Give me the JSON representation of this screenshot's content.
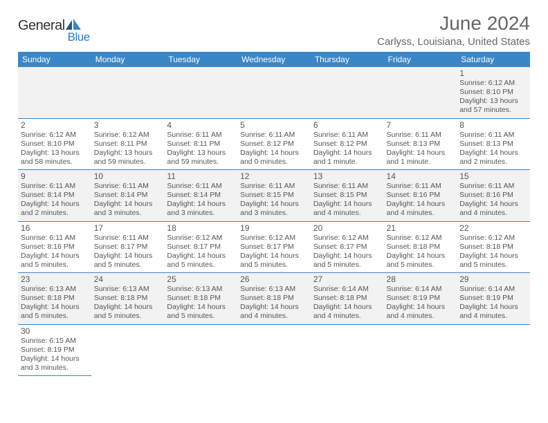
{
  "logo": {
    "text1": "General",
    "text2": "Blue"
  },
  "title": "June 2024",
  "location": "Carlyss, Louisiana, United States",
  "colors": {
    "header_bg": "#3b86c6",
    "header_text": "#ffffff",
    "alt_row_bg": "#f2f2f2",
    "text": "#555555",
    "title_text": "#666666",
    "logo_blue": "#2f7bbf"
  },
  "dayHeaders": [
    "Sunday",
    "Monday",
    "Tuesday",
    "Wednesday",
    "Thursday",
    "Friday",
    "Saturday"
  ],
  "weeks": [
    [
      null,
      null,
      null,
      null,
      null,
      null,
      {
        "n": "1",
        "sr": "6:12 AM",
        "ss": "8:10 PM",
        "dl": "13 hours and 57 minutes."
      }
    ],
    [
      {
        "n": "2",
        "sr": "6:12 AM",
        "ss": "8:10 PM",
        "dl": "13 hours and 58 minutes."
      },
      {
        "n": "3",
        "sr": "6:12 AM",
        "ss": "8:11 PM",
        "dl": "13 hours and 59 minutes."
      },
      {
        "n": "4",
        "sr": "6:11 AM",
        "ss": "8:11 PM",
        "dl": "13 hours and 59 minutes."
      },
      {
        "n": "5",
        "sr": "6:11 AM",
        "ss": "8:12 PM",
        "dl": "14 hours and 0 minutes."
      },
      {
        "n": "6",
        "sr": "6:11 AM",
        "ss": "8:12 PM",
        "dl": "14 hours and 1 minute."
      },
      {
        "n": "7",
        "sr": "6:11 AM",
        "ss": "8:13 PM",
        "dl": "14 hours and 1 minute."
      },
      {
        "n": "8",
        "sr": "6:11 AM",
        "ss": "8:13 PM",
        "dl": "14 hours and 2 minutes."
      }
    ],
    [
      {
        "n": "9",
        "sr": "6:11 AM",
        "ss": "8:14 PM",
        "dl": "14 hours and 2 minutes."
      },
      {
        "n": "10",
        "sr": "6:11 AM",
        "ss": "8:14 PM",
        "dl": "14 hours and 3 minutes."
      },
      {
        "n": "11",
        "sr": "6:11 AM",
        "ss": "8:14 PM",
        "dl": "14 hours and 3 minutes."
      },
      {
        "n": "12",
        "sr": "6:11 AM",
        "ss": "8:15 PM",
        "dl": "14 hours and 3 minutes."
      },
      {
        "n": "13",
        "sr": "6:11 AM",
        "ss": "8:15 PM",
        "dl": "14 hours and 4 minutes."
      },
      {
        "n": "14",
        "sr": "6:11 AM",
        "ss": "8:16 PM",
        "dl": "14 hours and 4 minutes."
      },
      {
        "n": "15",
        "sr": "6:11 AM",
        "ss": "8:16 PM",
        "dl": "14 hours and 4 minutes."
      }
    ],
    [
      {
        "n": "16",
        "sr": "6:11 AM",
        "ss": "8:16 PM",
        "dl": "14 hours and 5 minutes."
      },
      {
        "n": "17",
        "sr": "6:11 AM",
        "ss": "8:17 PM",
        "dl": "14 hours and 5 minutes."
      },
      {
        "n": "18",
        "sr": "6:12 AM",
        "ss": "8:17 PM",
        "dl": "14 hours and 5 minutes."
      },
      {
        "n": "19",
        "sr": "6:12 AM",
        "ss": "8:17 PM",
        "dl": "14 hours and 5 minutes."
      },
      {
        "n": "20",
        "sr": "6:12 AM",
        "ss": "8:17 PM",
        "dl": "14 hours and 5 minutes."
      },
      {
        "n": "21",
        "sr": "6:12 AM",
        "ss": "8:18 PM",
        "dl": "14 hours and 5 minutes."
      },
      {
        "n": "22",
        "sr": "6:12 AM",
        "ss": "8:18 PM",
        "dl": "14 hours and 5 minutes."
      }
    ],
    [
      {
        "n": "23",
        "sr": "6:13 AM",
        "ss": "8:18 PM",
        "dl": "14 hours and 5 minutes."
      },
      {
        "n": "24",
        "sr": "6:13 AM",
        "ss": "8:18 PM",
        "dl": "14 hours and 5 minutes."
      },
      {
        "n": "25",
        "sr": "6:13 AM",
        "ss": "8:18 PM",
        "dl": "14 hours and 5 minutes."
      },
      {
        "n": "26",
        "sr": "6:13 AM",
        "ss": "8:18 PM",
        "dl": "14 hours and 4 minutes."
      },
      {
        "n": "27",
        "sr": "6:14 AM",
        "ss": "8:18 PM",
        "dl": "14 hours and 4 minutes."
      },
      {
        "n": "28",
        "sr": "6:14 AM",
        "ss": "8:19 PM",
        "dl": "14 hours and 4 minutes."
      },
      {
        "n": "29",
        "sr": "6:14 AM",
        "ss": "8:19 PM",
        "dl": "14 hours and 4 minutes."
      }
    ],
    [
      {
        "n": "30",
        "sr": "6:15 AM",
        "ss": "8:19 PM",
        "dl": "14 hours and 3 minutes."
      },
      null,
      null,
      null,
      null,
      null,
      null
    ]
  ],
  "labels": {
    "sunrise": "Sunrise:",
    "sunset": "Sunset:",
    "daylight": "Daylight:"
  }
}
